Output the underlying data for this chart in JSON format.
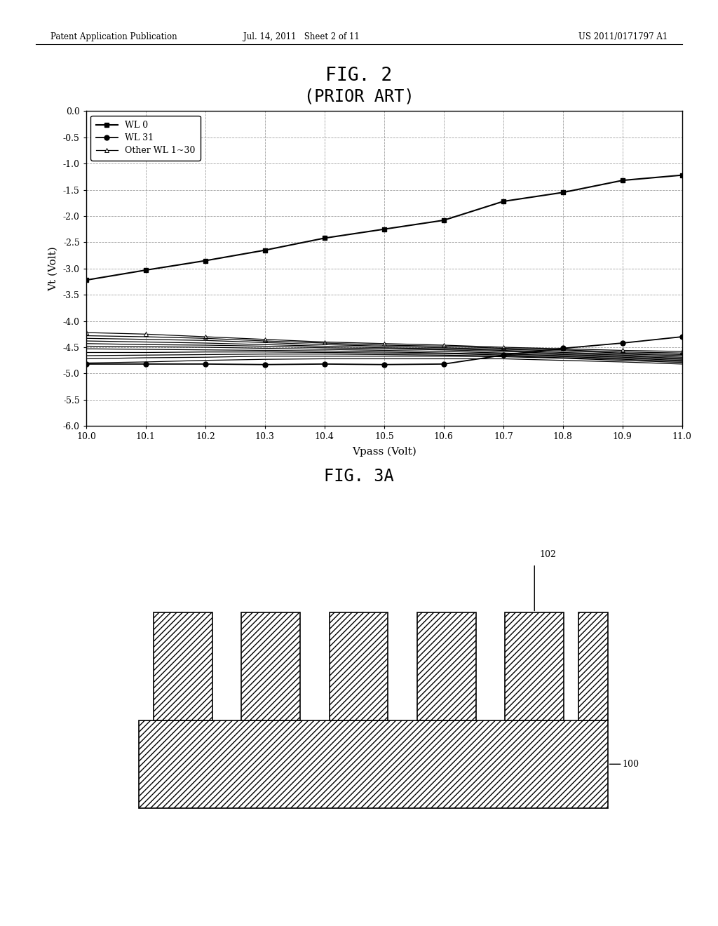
{
  "header_left": "Patent Application Publication",
  "header_mid": "Jul. 14, 2011   Sheet 2 of 11",
  "header_right": "US 2011/0171797 A1",
  "xlabel": "Vpass (Volt)",
  "ylabel": "Vt (Volt)",
  "xmin": 10.0,
  "xmax": 11.0,
  "ymin": -6.0,
  "ymax": 0.0,
  "xticks": [
    10.0,
    10.1,
    10.2,
    10.3,
    10.4,
    10.5,
    10.6,
    10.7,
    10.8,
    10.9,
    11.0
  ],
  "yticks": [
    0.0,
    -0.5,
    -1.0,
    -1.5,
    -2.0,
    -2.5,
    -3.0,
    -3.5,
    -4.0,
    -4.5,
    -5.0,
    -5.5,
    -6.0
  ],
  "wl0_x": [
    10.0,
    10.1,
    10.2,
    10.3,
    10.4,
    10.5,
    10.6,
    10.7,
    10.8,
    10.9,
    11.0
  ],
  "wl0_y": [
    -3.22,
    -3.03,
    -2.85,
    -2.65,
    -2.42,
    -2.25,
    -2.08,
    -1.72,
    -1.55,
    -1.32,
    -1.22
  ],
  "wl31_x": [
    10.0,
    10.1,
    10.2,
    10.3,
    10.4,
    10.5,
    10.6,
    10.7,
    10.8,
    10.9,
    11.0
  ],
  "wl31_y": [
    -4.82,
    -4.82,
    -4.82,
    -4.83,
    -4.82,
    -4.83,
    -4.82,
    -4.65,
    -4.52,
    -4.42,
    -4.3
  ],
  "other_wl_data": [
    [
      -4.22,
      -4.25,
      -4.3,
      -4.35,
      -4.4,
      -4.43,
      -4.46,
      -4.5,
      -4.53,
      -4.56,
      -4.58
    ],
    [
      -4.28,
      -4.3,
      -4.33,
      -4.38,
      -4.42,
      -4.46,
      -4.48,
      -4.52,
      -4.55,
      -4.59,
      -4.61
    ],
    [
      -4.33,
      -4.35,
      -4.37,
      -4.41,
      -4.45,
      -4.48,
      -4.51,
      -4.54,
      -4.57,
      -4.61,
      -4.64
    ],
    [
      -4.38,
      -4.4,
      -4.42,
      -4.45,
      -4.48,
      -4.51,
      -4.53,
      -4.56,
      -4.6,
      -4.63,
      -4.66
    ],
    [
      -4.43,
      -4.45,
      -4.46,
      -4.48,
      -4.51,
      -4.53,
      -4.55,
      -4.58,
      -4.62,
      -4.65,
      -4.69
    ],
    [
      -4.48,
      -4.49,
      -4.5,
      -4.52,
      -4.54,
      -4.56,
      -4.58,
      -4.61,
      -4.64,
      -4.67,
      -4.71
    ],
    [
      -4.53,
      -4.54,
      -4.55,
      -4.56,
      -4.57,
      -4.59,
      -4.61,
      -4.63,
      -4.66,
      -4.69,
      -4.73
    ],
    [
      -4.6,
      -4.6,
      -4.59,
      -4.59,
      -4.6,
      -4.61,
      -4.62,
      -4.65,
      -4.68,
      -4.71,
      -4.75
    ],
    [
      -4.66,
      -4.65,
      -4.64,
      -4.63,
      -4.63,
      -4.64,
      -4.65,
      -4.67,
      -4.7,
      -4.73,
      -4.77
    ],
    [
      -4.72,
      -4.7,
      -4.69,
      -4.67,
      -4.67,
      -4.67,
      -4.67,
      -4.68,
      -4.71,
      -4.75,
      -4.79
    ],
    [
      -4.8,
      -4.78,
      -4.75,
      -4.73,
      -4.72,
      -4.72,
      -4.72,
      -4.72,
      -4.75,
      -4.78,
      -4.82
    ]
  ],
  "background_color": "#ffffff"
}
